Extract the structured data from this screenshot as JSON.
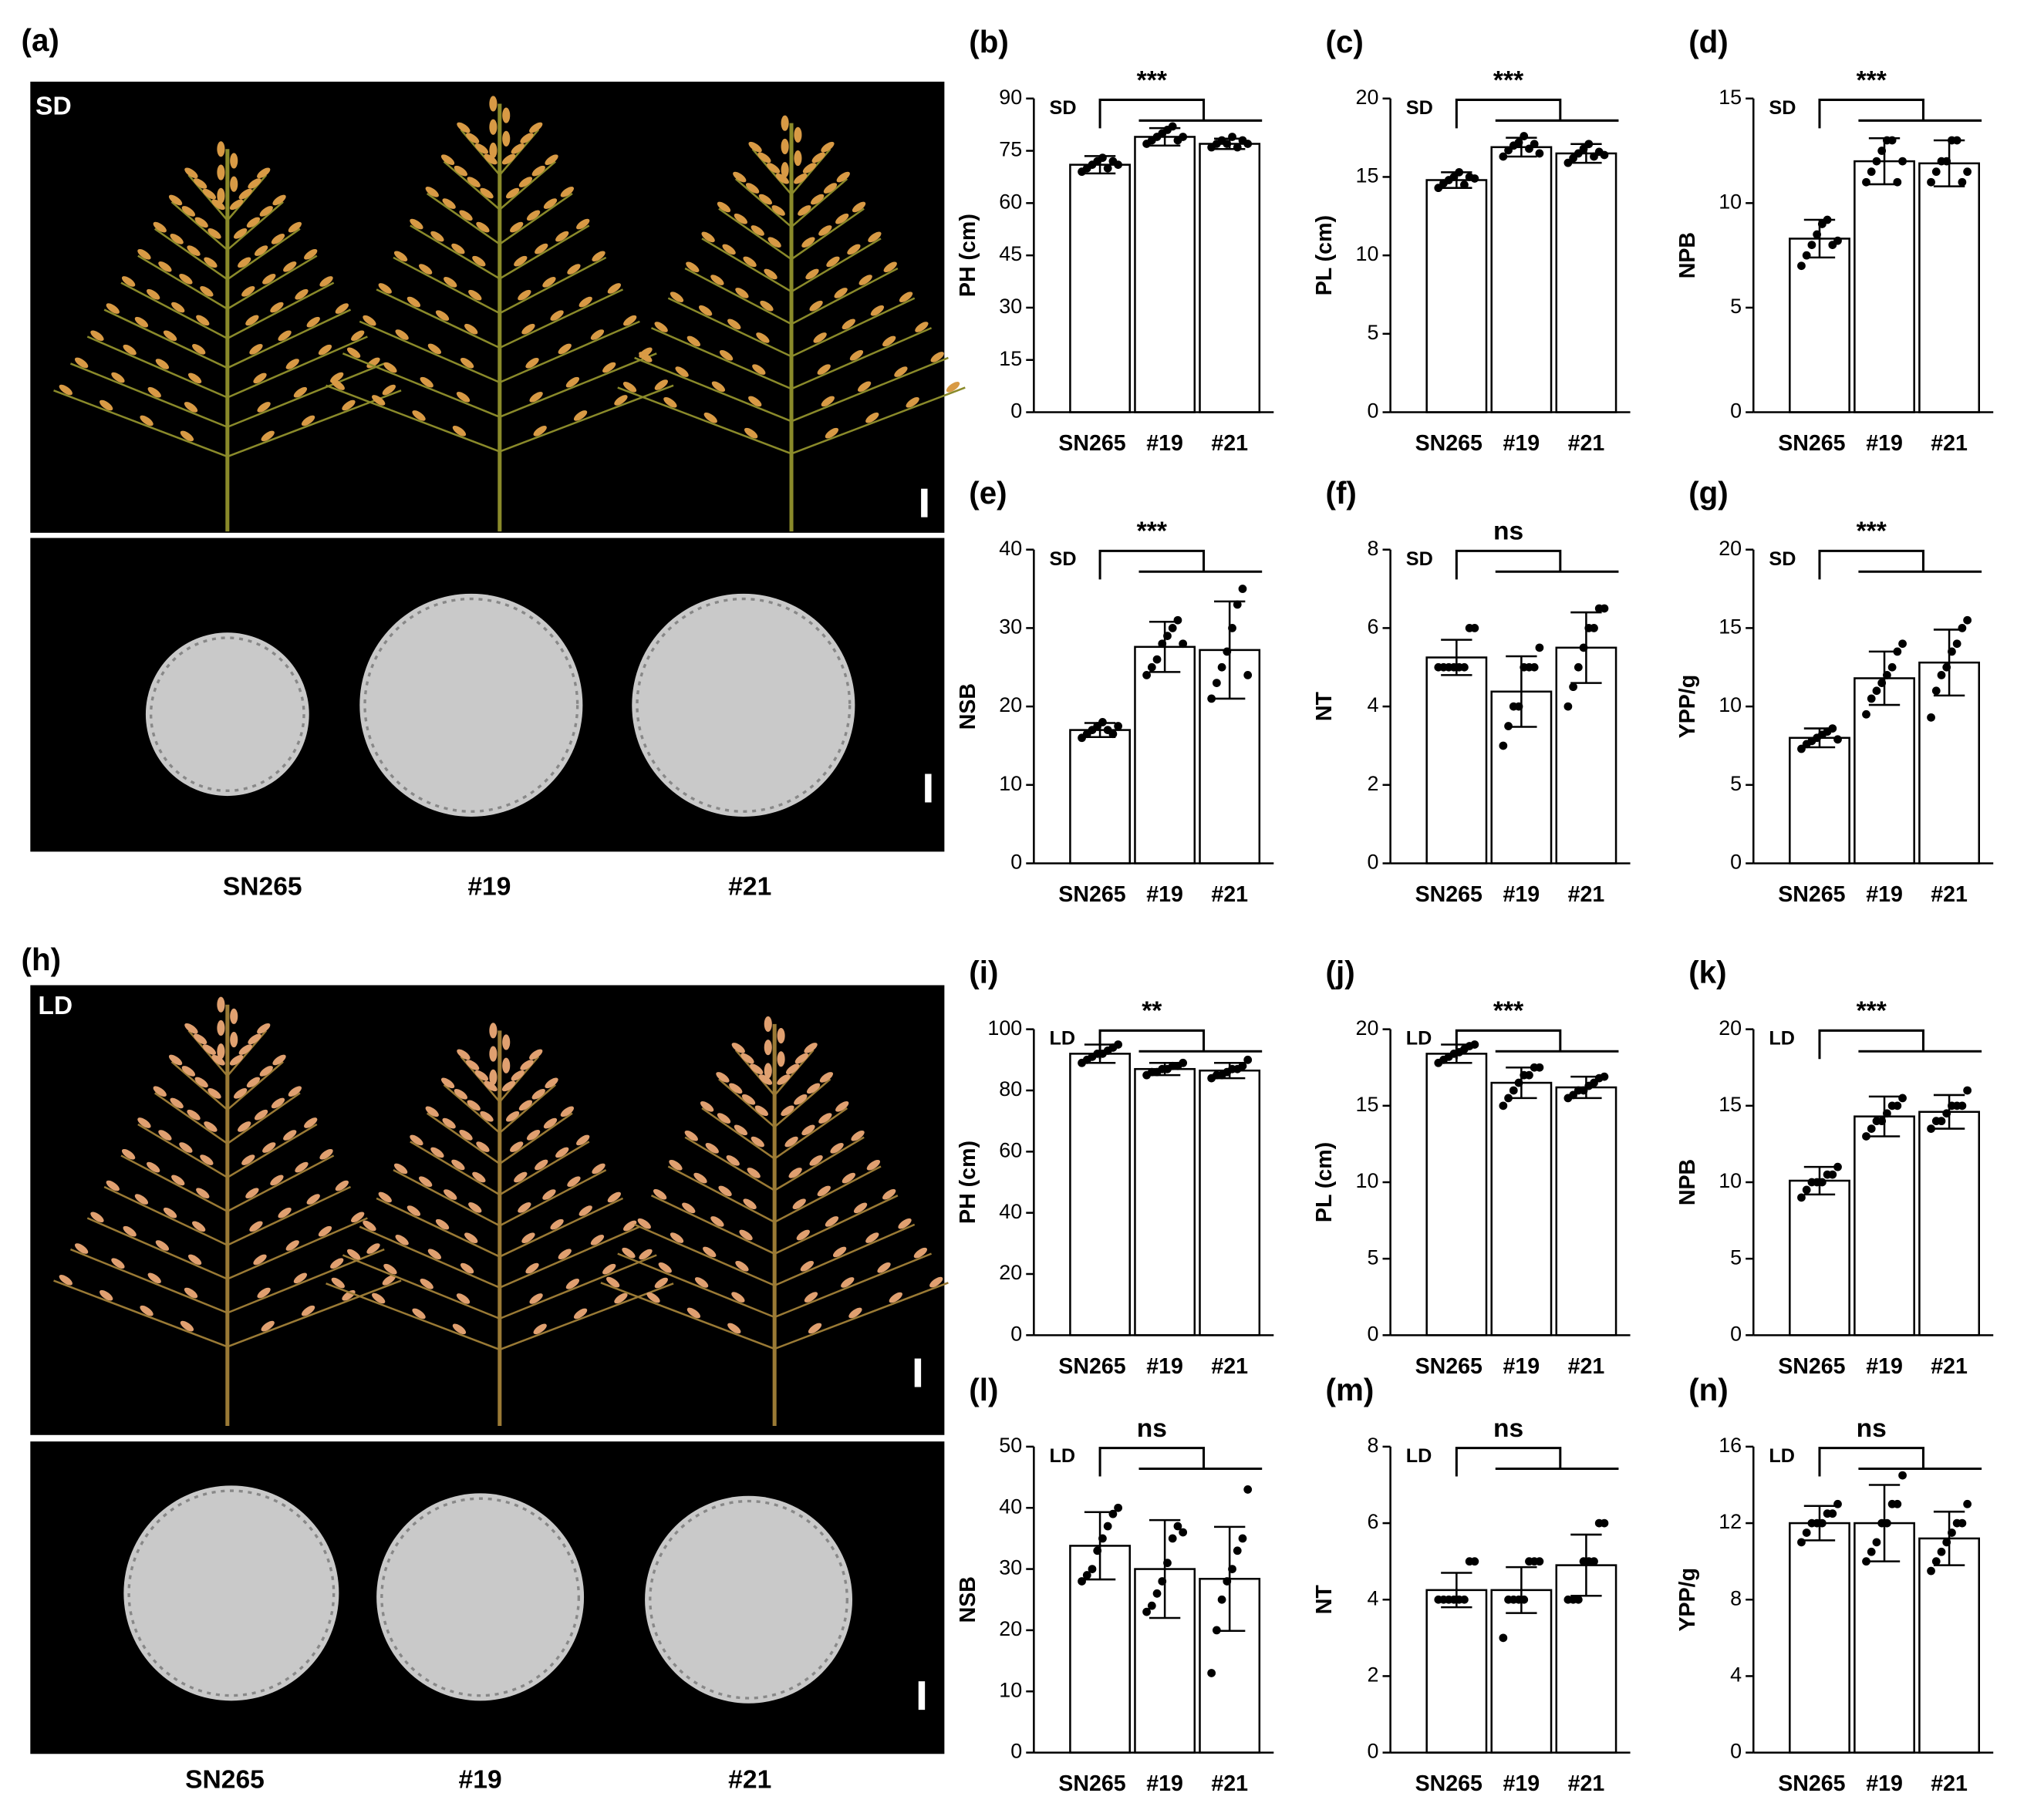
{
  "photo_panels": [
    {
      "label": "(a)",
      "condition": "SD",
      "genotypes": [
        "SN265",
        "#19",
        "#21"
      ]
    },
    {
      "label": "(h)",
      "condition": "LD",
      "genotypes": [
        "SN265",
        "#19",
        "#21"
      ]
    }
  ],
  "chart_data": [
    {
      "type": "bar",
      "panel": "(b)",
      "condition": "SD",
      "significance": "***",
      "y_label": "PH (cm)",
      "categories": [
        "SN265",
        "#19",
        "#21"
      ],
      "values": [
        71,
        79,
        77
      ],
      "errors": [
        2.5,
        2.5,
        1.5
      ],
      "points": [
        [
          69,
          70,
          71,
          72,
          73,
          70,
          72,
          71
        ],
        [
          77,
          78,
          79,
          80,
          81,
          82,
          78,
          79
        ],
        [
          76,
          77,
          78,
          77,
          79,
          76,
          78,
          77
        ]
      ],
      "ylim": [
        0,
        90
      ],
      "yticks": [
        0,
        15,
        30,
        45,
        60,
        75,
        90
      ],
      "bar_color": "#ffffff",
      "edge_color": "#000000",
      "point_color": "#000000"
    },
    {
      "type": "bar",
      "panel": "(c)",
      "condition": "SD",
      "significance": "***",
      "y_label": "PL (cm)",
      "categories": [
        "SN265",
        "#19",
        "#21"
      ],
      "values": [
        14.8,
        16.9,
        16.5
      ],
      "errors": [
        0.5,
        0.6,
        0.6
      ],
      "points": [
        [
          14.3,
          14.6,
          14.8,
          15,
          15.3,
          14.5,
          15,
          14.9
        ],
        [
          16.3,
          16.7,
          17,
          17.2,
          17.6,
          16.8,
          17.1,
          16.5
        ],
        [
          15.9,
          16.2,
          16.5,
          16.8,
          17.1,
          16.3,
          16.6,
          16.4
        ]
      ],
      "ylim": [
        0,
        20
      ],
      "yticks": [
        0,
        5,
        10,
        15,
        20
      ],
      "bar_color": "#ffffff",
      "edge_color": "#000000",
      "point_color": "#000000"
    },
    {
      "type": "bar",
      "panel": "(d)",
      "condition": "SD",
      "significance": "***",
      "y_label": "NPB",
      "categories": [
        "SN265",
        "#19",
        "#21"
      ],
      "values": [
        8.3,
        12,
        11.9
      ],
      "errors": [
        0.9,
        1.1,
        1.1
      ],
      "points": [
        [
          7,
          7.5,
          8,
          8.5,
          9,
          9.2,
          8,
          8.2
        ],
        [
          11,
          11.5,
          12,
          12.5,
          13,
          13,
          11,
          12
        ],
        [
          11,
          11.5,
          12,
          12,
          13,
          13,
          11,
          11.5
        ]
      ],
      "ylim": [
        0,
        15
      ],
      "yticks": [
        0,
        5,
        10,
        15
      ],
      "bar_color": "#ffffff",
      "edge_color": "#000000",
      "point_color": "#000000"
    },
    {
      "type": "bar",
      "panel": "(e)",
      "condition": "SD",
      "significance": "***",
      "y_label": "NSB",
      "categories": [
        "SN265",
        "#19",
        "#21"
      ],
      "values": [
        17,
        27.6,
        27.2
      ],
      "errors": [
        0.9,
        3.2,
        6.2
      ],
      "points": [
        [
          16,
          16.5,
          17,
          17.5,
          18,
          17,
          16.5,
          17.5
        ],
        [
          24,
          25,
          26,
          28,
          29,
          30,
          31,
          28
        ],
        [
          21,
          23,
          25,
          27,
          30,
          33,
          35,
          24
        ]
      ],
      "ylim": [
        0,
        40
      ],
      "yticks": [
        0,
        10,
        20,
        30,
        40
      ],
      "bar_color": "#ffffff",
      "edge_color": "#000000",
      "point_color": "#000000"
    },
    {
      "type": "bar",
      "panel": "(f)",
      "condition": "SD",
      "significance": "ns",
      "y_label": "NT",
      "categories": [
        "SN265",
        "#19",
        "#21"
      ],
      "values": [
        5.25,
        4.38,
        5.5
      ],
      "errors": [
        0.45,
        0.9,
        0.9
      ],
      "points": [
        [
          5,
          5,
          5,
          5,
          5,
          5,
          6,
          6
        ],
        [
          3,
          3.5,
          4,
          4,
          5,
          5,
          5,
          5.5
        ],
        [
          4,
          4.5,
          5,
          5.5,
          6,
          6,
          6.5,
          6.5
        ]
      ],
      "ylim": [
        0,
        8
      ],
      "yticks": [
        0,
        2,
        4,
        6,
        8
      ],
      "bar_color": "#ffffff",
      "edge_color": "#000000",
      "point_color": "#000000"
    },
    {
      "type": "bar",
      "panel": "(g)",
      "condition": "SD",
      "significance": "***",
      "y_label": "YPP/g",
      "categories": [
        "SN265",
        "#19",
        "#21"
      ],
      "values": [
        8,
        11.8,
        12.8
      ],
      "errors": [
        0.6,
        1.7,
        2.1
      ],
      "points": [
        [
          7.3,
          7.6,
          7.8,
          8,
          8.2,
          8.4,
          8.6,
          7.9
        ],
        [
          9.5,
          10.5,
          11,
          11.5,
          12,
          12.5,
          13.5,
          14
        ],
        [
          9.3,
          11,
          12,
          12.5,
          13.5,
          14,
          15,
          15.5
        ]
      ],
      "ylim": [
        0,
        20
      ],
      "yticks": [
        0,
        5,
        10,
        15,
        20
      ],
      "bar_color": "#ffffff",
      "edge_color": "#000000",
      "point_color": "#000000"
    },
    {
      "type": "bar",
      "panel": "(i)",
      "condition": "LD",
      "significance": "**",
      "y_label": "PH (cm)",
      "categories": [
        "SN265",
        "#19",
        "#21"
      ],
      "values": [
        92,
        87,
        86.5
      ],
      "errors": [
        3,
        2,
        2.5
      ],
      "points": [
        [
          89,
          90,
          91,
          92,
          92,
          93,
          94,
          95
        ],
        [
          85,
          86,
          86,
          87,
          87,
          88,
          88,
          89
        ],
        [
          84,
          85,
          85,
          86,
          87,
          87,
          88,
          90
        ]
      ],
      "ylim": [
        0,
        100
      ],
      "yticks": [
        0,
        20,
        40,
        60,
        80,
        100
      ],
      "bar_color": "#ffffff",
      "edge_color": "#000000",
      "point_color": "#000000"
    },
    {
      "type": "bar",
      "panel": "(j)",
      "condition": "LD",
      "significance": "***",
      "y_label": "PL (cm)",
      "categories": [
        "SN265",
        "#19",
        "#21"
      ],
      "values": [
        18.4,
        16.5,
        16.2
      ],
      "errors": [
        0.6,
        1,
        0.7
      ],
      "points": [
        [
          17.8,
          18,
          18.2,
          18.4,
          18.5,
          18.7,
          18.9,
          19
        ],
        [
          15,
          15.5,
          16,
          16.5,
          17,
          17,
          17.5,
          17.5
        ],
        [
          15.5,
          15.7,
          16,
          16,
          16.3,
          16.5,
          16.8,
          16.9
        ]
      ],
      "ylim": [
        0,
        20
      ],
      "yticks": [
        0,
        5,
        10,
        15,
        20
      ],
      "bar_color": "#ffffff",
      "edge_color": "#000000",
      "point_color": "#000000"
    },
    {
      "type": "bar",
      "panel": "(k)",
      "condition": "LD",
      "significance": "***",
      "y_label": "NPB",
      "categories": [
        "SN265",
        "#19",
        "#21"
      ],
      "values": [
        10.1,
        14.3,
        14.6
      ],
      "errors": [
        0.9,
        1.3,
        1.1
      ],
      "points": [
        [
          9,
          9.5,
          10,
          10,
          10,
          10.5,
          10.5,
          11
        ],
        [
          13,
          13.5,
          14,
          14,
          14.5,
          15,
          15,
          15.5
        ],
        [
          13.5,
          14,
          14,
          14.5,
          15,
          15,
          15,
          16
        ]
      ],
      "ylim": [
        0,
        20
      ],
      "yticks": [
        0,
        5,
        10,
        15,
        20
      ],
      "bar_color": "#ffffff",
      "edge_color": "#000000",
      "point_color": "#000000"
    },
    {
      "type": "bar",
      "panel": "(l)",
      "condition": "LD",
      "significance": "ns",
      "y_label": "NSB",
      "categories": [
        "SN265",
        "#19",
        "#21"
      ],
      "values": [
        33.8,
        30,
        28.4
      ],
      "errors": [
        5.5,
        8,
        8.5
      ],
      "points": [
        [
          28,
          29,
          30,
          33,
          35,
          37,
          39,
          40
        ],
        [
          23,
          24,
          26,
          28,
          31,
          35,
          37,
          36
        ],
        [
          13,
          20,
          25,
          28,
          30,
          33,
          35,
          43
        ]
      ],
      "ylim": [
        0,
        50
      ],
      "yticks": [
        0,
        10,
        20,
        30,
        40,
        50
      ],
      "bar_color": "#ffffff",
      "edge_color": "#000000",
      "point_color": "#000000"
    },
    {
      "type": "bar",
      "panel": "(m)",
      "condition": "LD",
      "significance": "ns",
      "y_label": "NT",
      "categories": [
        "SN265",
        "#19",
        "#21"
      ],
      "values": [
        4.25,
        4.25,
        4.9
      ],
      "errors": [
        0.45,
        0.6,
        0.8
      ],
      "points": [
        [
          4,
          4,
          4,
          4,
          4,
          4,
          5,
          5
        ],
        [
          3,
          4,
          4,
          4,
          4,
          5,
          5,
          5
        ],
        [
          4,
          4,
          4,
          5,
          5,
          5,
          6,
          6
        ]
      ],
      "ylim": [
        0,
        8
      ],
      "yticks": [
        0,
        2,
        4,
        6,
        8
      ],
      "bar_color": "#ffffff",
      "edge_color": "#000000",
      "point_color": "#000000"
    },
    {
      "type": "bar",
      "panel": "(n)",
      "condition": "LD",
      "significance": "ns",
      "y_label": "YPP/g",
      "categories": [
        "SN265",
        "#19",
        "#21"
      ],
      "values": [
        12,
        12,
        11.2
      ],
      "errors": [
        0.9,
        2,
        1.4
      ],
      "points": [
        [
          11,
          11.5,
          12,
          12,
          12,
          12.5,
          12.5,
          13
        ],
        [
          10,
          10.5,
          11,
          12,
          12,
          13,
          13,
          14.5
        ],
        [
          9.5,
          10,
          10.5,
          11,
          11.5,
          12,
          12,
          13
        ]
      ],
      "ylim": [
        0,
        16
      ],
      "yticks": [
        0,
        4,
        8,
        12,
        16
      ],
      "bar_color": "#ffffff",
      "edge_color": "#000000",
      "point_color": "#000000"
    }
  ]
}
